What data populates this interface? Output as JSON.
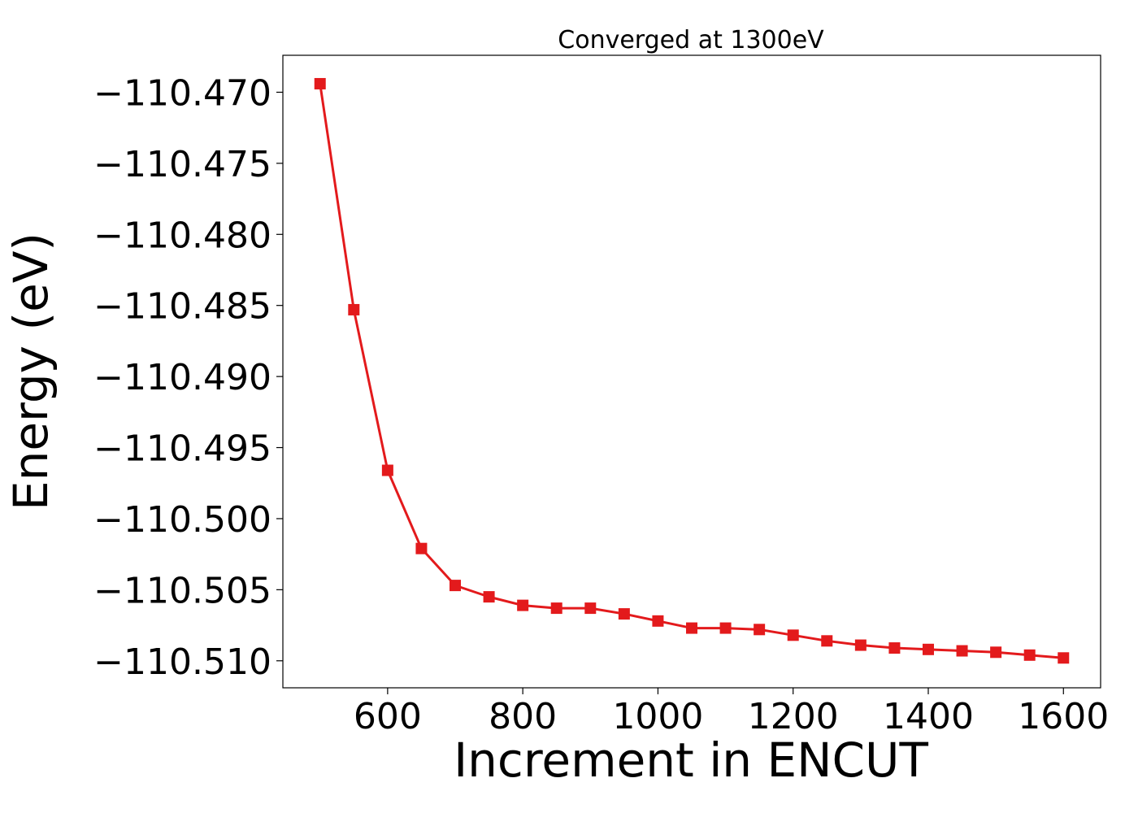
{
  "chart_data": {
    "type": "line",
    "title": "Converged at 1300eV",
    "xlabel": "Increment in ENCUT",
    "ylabel": "Energy (eV)",
    "xlim": [
      445,
      1655
    ],
    "ylim": [
      -110.5119,
      -110.4674
    ],
    "x_ticks": [
      600,
      800,
      1000,
      1200,
      1400,
      1600
    ],
    "x_tick_labels": [
      "600",
      "800",
      "1000",
      "1200",
      "1400",
      "1600"
    ],
    "y_ticks": [
      -110.47,
      -110.475,
      -110.48,
      -110.485,
      -110.49,
      -110.495,
      -110.5,
      -110.505,
      -110.51
    ],
    "y_tick_labels": [
      "−110.470",
      "−110.475",
      "−110.480",
      "−110.485",
      "−110.490",
      "−110.495",
      "−110.500",
      "−110.505",
      "−110.510"
    ],
    "grid": false,
    "series": [
      {
        "color": "#e31a1c",
        "marker": "square",
        "x": [
          500,
          550,
          600,
          650,
          700,
          750,
          800,
          850,
          900,
          950,
          1000,
          1050,
          1100,
          1150,
          1200,
          1250,
          1300,
          1350,
          1400,
          1450,
          1500,
          1550,
          1600
        ],
        "y": [
          -110.4694,
          -110.4853,
          -110.4966,
          -110.5021,
          -110.5047,
          -110.5055,
          -110.5061,
          -110.5063,
          -110.5063,
          -110.5067,
          -110.5072,
          -110.5077,
          -110.5077,
          -110.5078,
          -110.5082,
          -110.5086,
          -110.5089,
          -110.5091,
          -110.5092,
          -110.5093,
          -110.5094,
          -110.5096,
          -110.5098
        ]
      }
    ]
  }
}
